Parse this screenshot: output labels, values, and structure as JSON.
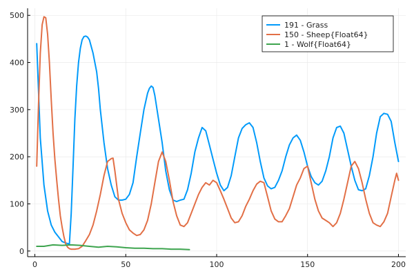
{
  "chart_data": {
    "type": "line",
    "title": "",
    "xlabel": "",
    "ylabel": "",
    "xlim": [
      -4,
      204
    ],
    "ylim": [
      -12,
      515
    ],
    "xticks": [
      0,
      50,
      100,
      150,
      200
    ],
    "yticks": [
      0,
      100,
      200,
      300,
      400,
      500
    ],
    "grid": true,
    "legend_position": "top-right",
    "series": [
      {
        "name": "191 - Grass",
        "color": "#009AFA",
        "points": [
          [
            1,
            440
          ],
          [
            3,
            240
          ],
          [
            5,
            140
          ],
          [
            7,
            85
          ],
          [
            9,
            55
          ],
          [
            11,
            40
          ],
          [
            13,
            30
          ],
          [
            15,
            20
          ],
          [
            17,
            17
          ],
          [
            19,
            15
          ],
          [
            20,
            80
          ],
          [
            21,
            180
          ],
          [
            22,
            280
          ],
          [
            23,
            350
          ],
          [
            24,
            400
          ],
          [
            25,
            430
          ],
          [
            26,
            448
          ],
          [
            27,
            455
          ],
          [
            28,
            456
          ],
          [
            29,
            454
          ],
          [
            30,
            448
          ],
          [
            32,
            420
          ],
          [
            34,
            380
          ],
          [
            35,
            345
          ],
          [
            36,
            300
          ],
          [
            38,
            230
          ],
          [
            40,
            175
          ],
          [
            42,
            140
          ],
          [
            44,
            115
          ],
          [
            46,
            108
          ],
          [
            48,
            108
          ],
          [
            50,
            110
          ],
          [
            52,
            120
          ],
          [
            54,
            145
          ],
          [
            56,
            200
          ],
          [
            58,
            250
          ],
          [
            60,
            300
          ],
          [
            62,
            335
          ],
          [
            63,
            345
          ],
          [
            64,
            350
          ],
          [
            65,
            347
          ],
          [
            66,
            330
          ],
          [
            68,
            280
          ],
          [
            70,
            230
          ],
          [
            72,
            170
          ],
          [
            74,
            130
          ],
          [
            76,
            108
          ],
          [
            78,
            105
          ],
          [
            80,
            108
          ],
          [
            82,
            110
          ],
          [
            84,
            130
          ],
          [
            86,
            165
          ],
          [
            88,
            210
          ],
          [
            90,
            240
          ],
          [
            92,
            262
          ],
          [
            94,
            255
          ],
          [
            96,
            225
          ],
          [
            98,
            195
          ],
          [
            100,
            165
          ],
          [
            102,
            140
          ],
          [
            104,
            128
          ],
          [
            106,
            135
          ],
          [
            108,
            160
          ],
          [
            110,
            200
          ],
          [
            112,
            240
          ],
          [
            114,
            260
          ],
          [
            116,
            268
          ],
          [
            118,
            272
          ],
          [
            120,
            262
          ],
          [
            122,
            230
          ],
          [
            124,
            190
          ],
          [
            126,
            155
          ],
          [
            128,
            138
          ],
          [
            130,
            132
          ],
          [
            132,
            135
          ],
          [
            134,
            150
          ],
          [
            136,
            170
          ],
          [
            138,
            200
          ],
          [
            140,
            225
          ],
          [
            142,
            240
          ],
          [
            144,
            246
          ],
          [
            146,
            235
          ],
          [
            148,
            210
          ],
          [
            150,
            180
          ],
          [
            152,
            158
          ],
          [
            154,
            145
          ],
          [
            156,
            140
          ],
          [
            158,
            148
          ],
          [
            160,
            170
          ],
          [
            162,
            200
          ],
          [
            164,
            240
          ],
          [
            166,
            262
          ],
          [
            168,
            265
          ],
          [
            170,
            250
          ],
          [
            172,
            215
          ],
          [
            174,
            180
          ],
          [
            176,
            150
          ],
          [
            178,
            130
          ],
          [
            180,
            128
          ],
          [
            182,
            132
          ],
          [
            184,
            160
          ],
          [
            186,
            200
          ],
          [
            188,
            250
          ],
          [
            190,
            285
          ],
          [
            192,
            292
          ],
          [
            194,
            290
          ],
          [
            196,
            275
          ],
          [
            198,
            230
          ],
          [
            200,
            190
          ]
        ]
      },
      {
        "name": "150 - Sheep{Float64}",
        "color": "#E26F46",
        "points": [
          [
            1,
            180
          ],
          [
            2,
            310
          ],
          [
            3,
            420
          ],
          [
            4,
            480
          ],
          [
            5,
            497
          ],
          [
            6,
            495
          ],
          [
            7,
            460
          ],
          [
            8,
            400
          ],
          [
            9,
            320
          ],
          [
            10,
            250
          ],
          [
            11,
            195
          ],
          [
            12,
            150
          ],
          [
            13,
            110
          ],
          [
            14,
            75
          ],
          [
            15,
            50
          ],
          [
            16,
            30
          ],
          [
            17,
            15
          ],
          [
            18,
            8
          ],
          [
            19,
            5
          ],
          [
            20,
            4
          ],
          [
            22,
            4
          ],
          [
            24,
            5
          ],
          [
            26,
            10
          ],
          [
            28,
            22
          ],
          [
            30,
            35
          ],
          [
            32,
            55
          ],
          [
            34,
            85
          ],
          [
            36,
            120
          ],
          [
            38,
            160
          ],
          [
            40,
            190
          ],
          [
            42,
            196
          ],
          [
            43,
            197
          ],
          [
            44,
            170
          ],
          [
            46,
            110
          ],
          [
            48,
            80
          ],
          [
            50,
            60
          ],
          [
            52,
            45
          ],
          [
            54,
            38
          ],
          [
            56,
            33
          ],
          [
            58,
            35
          ],
          [
            60,
            45
          ],
          [
            62,
            65
          ],
          [
            64,
            100
          ],
          [
            66,
            145
          ],
          [
            68,
            190
          ],
          [
            70,
            210
          ],
          [
            72,
            190
          ],
          [
            74,
            150
          ],
          [
            76,
            105
          ],
          [
            78,
            75
          ],
          [
            80,
            55
          ],
          [
            82,
            52
          ],
          [
            84,
            60
          ],
          [
            86,
            80
          ],
          [
            88,
            100
          ],
          [
            90,
            120
          ],
          [
            92,
            135
          ],
          [
            94,
            145
          ],
          [
            96,
            140
          ],
          [
            98,
            150
          ],
          [
            100,
            145
          ],
          [
            102,
            128
          ],
          [
            104,
            110
          ],
          [
            106,
            90
          ],
          [
            108,
            70
          ],
          [
            110,
            60
          ],
          [
            112,
            62
          ],
          [
            114,
            75
          ],
          [
            116,
            95
          ],
          [
            118,
            110
          ],
          [
            120,
            128
          ],
          [
            122,
            142
          ],
          [
            124,
            148
          ],
          [
            126,
            145
          ],
          [
            128,
            115
          ],
          [
            130,
            85
          ],
          [
            132,
            68
          ],
          [
            134,
            62
          ],
          [
            136,
            62
          ],
          [
            138,
            75
          ],
          [
            140,
            90
          ],
          [
            142,
            115
          ],
          [
            144,
            140
          ],
          [
            146,
            155
          ],
          [
            148,
            175
          ],
          [
            150,
            180
          ],
          [
            152,
            145
          ],
          [
            154,
            110
          ],
          [
            156,
            85
          ],
          [
            158,
            70
          ],
          [
            160,
            65
          ],
          [
            162,
            60
          ],
          [
            164,
            52
          ],
          [
            166,
            60
          ],
          [
            168,
            80
          ],
          [
            170,
            110
          ],
          [
            172,
            145
          ],
          [
            174,
            180
          ],
          [
            176,
            190
          ],
          [
            178,
            175
          ],
          [
            180,
            145
          ],
          [
            182,
            110
          ],
          [
            184,
            80
          ],
          [
            186,
            60
          ],
          [
            188,
            55
          ],
          [
            190,
            52
          ],
          [
            192,
            62
          ],
          [
            194,
            80
          ],
          [
            196,
            115
          ],
          [
            198,
            150
          ],
          [
            199,
            165
          ],
          [
            200,
            150
          ]
        ]
      },
      {
        "name": "1 - Wolf{Float64}",
        "color": "#3DA44E",
        "points": [
          [
            1,
            10
          ],
          [
            5,
            10
          ],
          [
            10,
            13
          ],
          [
            15,
            12
          ],
          [
            20,
            13
          ],
          [
            25,
            12
          ],
          [
            30,
            10
          ],
          [
            35,
            8
          ],
          [
            40,
            10
          ],
          [
            45,
            9
          ],
          [
            50,
            7
          ],
          [
            55,
            6
          ],
          [
            60,
            6
          ],
          [
            65,
            5
          ],
          [
            70,
            5
          ],
          [
            75,
            4
          ],
          [
            80,
            4
          ],
          [
            85,
            3
          ]
        ]
      }
    ]
  }
}
